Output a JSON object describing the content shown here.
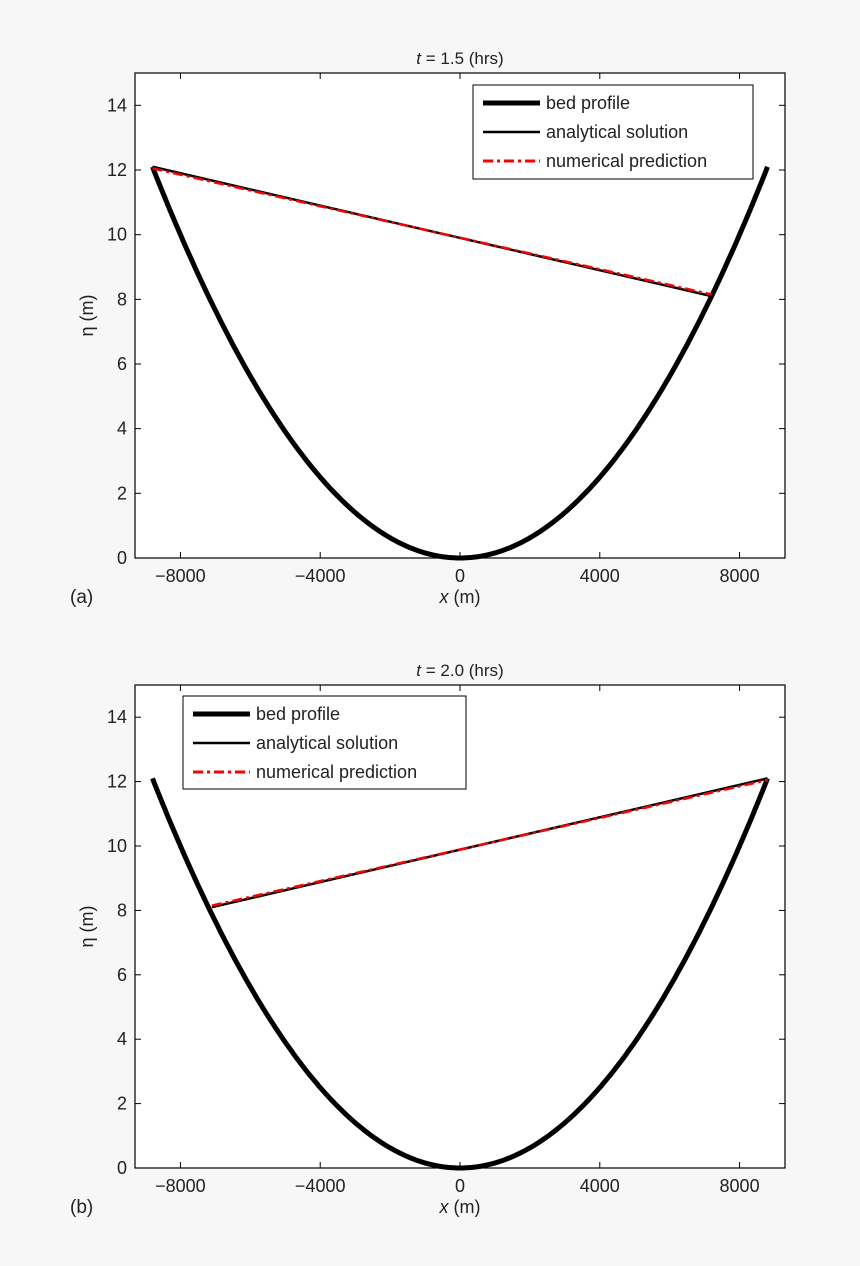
{
  "chart_data": [
    {
      "type": "line",
      "panel_label": "(a)",
      "title_var": "t",
      "title_rest": " = 1.5 (hrs)",
      "xlabel_var": "x",
      "xlabel_rest": " (m)",
      "ylabel": "η (m)",
      "xlim": [
        -9300,
        9300
      ],
      "ylim": [
        0,
        15
      ],
      "xticks": [
        -8000,
        -4000,
        0,
        4000,
        8000
      ],
      "xtick_labels": [
        "−8000",
        "−4000",
        "0",
        "4000",
        "8000"
      ],
      "yticks": [
        0,
        2,
        4,
        6,
        8,
        10,
        12,
        14
      ],
      "grid": false,
      "legend_position": "top-right",
      "bed": {
        "x_range": [
          -8800,
          8800
        ],
        "y_at_ends": 12.1,
        "y_min": 0
      },
      "series": [
        {
          "name": "bed profile",
          "style": "thick-solid",
          "color": "#000000"
        },
        {
          "name": "analytical solution",
          "style": "solid",
          "color": "#000000",
          "x": [
            -8800,
            7200
          ],
          "y": [
            12.1,
            8.1
          ]
        },
        {
          "name": "numerical prediction",
          "style": "dash-dot",
          "color": "#ff0000",
          "x": [
            -8800,
            7200
          ],
          "y": [
            12.05,
            8.15
          ]
        }
      ]
    },
    {
      "type": "line",
      "panel_label": "(b)",
      "title_var": "t",
      "title_rest": " = 2.0 (hrs)",
      "xlabel_var": "x",
      "xlabel_rest": " (m)",
      "ylabel": "η (m)",
      "xlim": [
        -9300,
        9300
      ],
      "ylim": [
        0,
        15
      ],
      "xticks": [
        -8000,
        -4000,
        0,
        4000,
        8000
      ],
      "xtick_labels": [
        "−8000",
        "−4000",
        "0",
        "4000",
        "8000"
      ],
      "yticks": [
        0,
        2,
        4,
        6,
        8,
        10,
        12,
        14
      ],
      "grid": false,
      "legend_position": "top-left",
      "bed": {
        "x_range": [
          -8800,
          8800
        ],
        "y_at_ends": 12.1,
        "y_min": 0
      },
      "series": [
        {
          "name": "bed profile",
          "style": "thick-solid",
          "color": "#000000"
        },
        {
          "name": "analytical solution",
          "style": "solid",
          "color": "#000000",
          "x": [
            -7100,
            8800
          ],
          "y": [
            8.1,
            12.1
          ]
        },
        {
          "name": "numerical prediction",
          "style": "dash-dot",
          "color": "#ff0000",
          "x": [
            -7100,
            8800
          ],
          "y": [
            8.15,
            12.05
          ]
        }
      ]
    }
  ]
}
